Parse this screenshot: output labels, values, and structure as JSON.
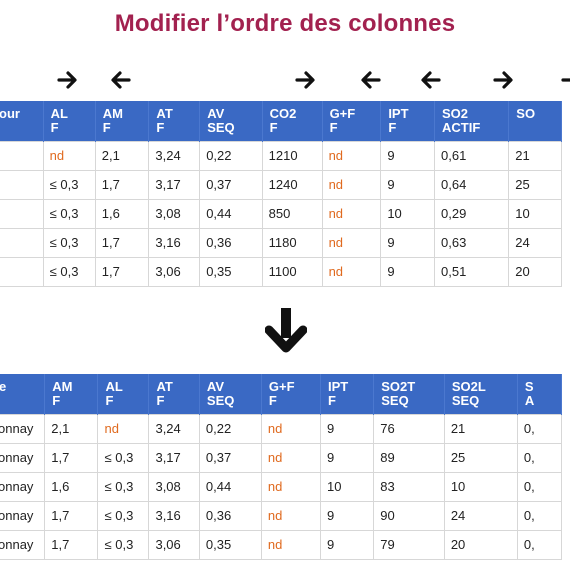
{
  "page": {
    "title": "Modifier l’ordre des colonnes"
  },
  "arrows": [
    {
      "icon": "arrow-right-icon",
      "dir": "right"
    },
    {
      "icon": "arrow-left-icon",
      "dir": "left"
    },
    {
      "icon": "arrow-right-icon",
      "dir": "right"
    },
    {
      "icon": "arrow-left-icon",
      "dir": "left"
    },
    {
      "icon": "arrow-left-icon",
      "dir": "left"
    },
    {
      "icon": "arrow-right-icon",
      "dir": "right"
    },
    {
      "icon": "arrow-right-icon",
      "dir": "right"
    }
  ],
  "down_arrow_icon": "arrow-down-icon",
  "colors": {
    "title": "#a2214f",
    "header_bg": "#3a69c4",
    "nd_value": "#e06a1f"
  },
  "table_before": {
    "headers": [
      [
        "our"
      ],
      [
        "AL",
        "F"
      ],
      [
        "AM",
        "F"
      ],
      [
        "AT",
        "F"
      ],
      [
        "AV",
        "SEQ"
      ],
      [
        "CO2",
        "F"
      ],
      [
        "G+F",
        "F"
      ],
      [
        "IPT",
        "F"
      ],
      [
        "SO2",
        "ACTIF"
      ],
      [
        "SO",
        ""
      ]
    ],
    "rows": [
      [
        "",
        "nd",
        "2,1",
        "3,24",
        "0,22",
        "1210",
        "nd",
        "9",
        "0,61",
        "21"
      ],
      [
        "",
        "≤ 0,3",
        "1,7",
        "3,17",
        "0,37",
        "1240",
        "nd",
        "9",
        "0,64",
        "25"
      ],
      [
        "",
        "≤ 0,3",
        "1,6",
        "3,08",
        "0,44",
        "850",
        "nd",
        "10",
        "0,29",
        "10"
      ],
      [
        "",
        "≤ 0,3",
        "1,7",
        "3,16",
        "0,36",
        "1180",
        "nd",
        "9",
        "0,63",
        "24"
      ],
      [
        "",
        "≤ 0,3",
        "1,7",
        "3,06",
        "0,35",
        "1100",
        "nd",
        "9",
        "0,51",
        "20"
      ]
    ]
  },
  "table_after": {
    "headers": [
      [
        "e"
      ],
      [
        "AM",
        "F"
      ],
      [
        "AL",
        "F"
      ],
      [
        "AT",
        "F"
      ],
      [
        "AV",
        "SEQ"
      ],
      [
        "G+F",
        "F"
      ],
      [
        "IPT",
        "F"
      ],
      [
        "SO2T",
        "SEQ"
      ],
      [
        "SO2L",
        "SEQ"
      ],
      [
        "S",
        "A"
      ]
    ],
    "rows": [
      [
        "onnay",
        "2,1",
        "nd",
        "3,24",
        "0,22",
        "nd",
        "9",
        "76",
        "21",
        "0,"
      ],
      [
        "onnay",
        "1,7",
        "≤ 0,3",
        "3,17",
        "0,37",
        "nd",
        "9",
        "89",
        "25",
        "0,"
      ],
      [
        "onnay",
        "1,6",
        "≤ 0,3",
        "3,08",
        "0,44",
        "nd",
        "10",
        "83",
        "10",
        "0,"
      ],
      [
        "onnay",
        "1,7",
        "≤ 0,3",
        "3,16",
        "0,36",
        "nd",
        "9",
        "90",
        "24",
        "0,"
      ],
      [
        "onnay",
        "1,7",
        "≤ 0,3",
        "3,06",
        "0,35",
        "nd",
        "9",
        "79",
        "20",
        "0,"
      ]
    ]
  }
}
